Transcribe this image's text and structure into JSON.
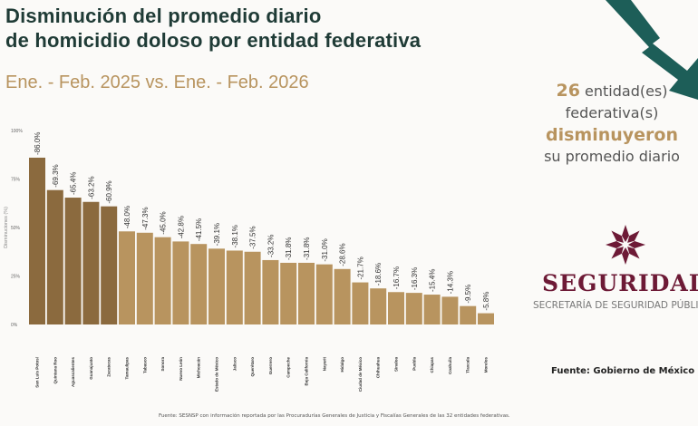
{
  "header": {
    "title_line1": "Disminución del promedio diario",
    "title_line2": "de homicidio doloso por entidad federativa",
    "subtitle": "Ene. - Feb. 2025 vs. Ene. - Feb. 2026"
  },
  "side": {
    "count": "26",
    "line1_rest": " entidad(es)",
    "line2": "federativa(s)",
    "line3": "disminuyeron",
    "line4": "su promedio diario"
  },
  "logo": {
    "word": "SEGURIDAD",
    "subtitle": "SECRETARÍA DE SEGURIDAD PÚBLICA"
  },
  "source": "Fuente: Gobierno de México",
  "footnote": "Fuente: SESNSP con información reportada por las Procuradurías Generales de Justicia y Fiscalías Generales de las 32 entidades federativas.",
  "colors": {
    "dark_bar": "#8b6a3e",
    "light_bar": "#b8945f",
    "title": "#1f3b36",
    "accent": "#b8945f",
    "logo": "#6d1a36",
    "arrow": "#1d5e58"
  },
  "chart_data": {
    "type": "bar",
    "ylabel": "Disminuciones (%)",
    "ylim": [
      0,
      100
    ],
    "yticks": [
      "0%",
      "25%",
      "50%",
      "75%",
      "100%"
    ],
    "grid": false,
    "categories": [
      "San Luis Potosí",
      "Quintana Roo",
      "Aguascalientes",
      "Guanajuato",
      "Zacatecas",
      "Tamaulipas",
      "Tabasco",
      "Sonora",
      "Nuevo León",
      "Michoacán",
      "Estado de México",
      "Jalisco",
      "Querétaro",
      "Guerrero",
      "Campeche",
      "Baja California",
      "Nayarit",
      "Hidalgo",
      "Ciudad de México",
      "Chihuahua",
      "Sinaloa",
      "Puebla",
      "Chiapas",
      "Coahuila",
      "Tlaxcala",
      "Morelos"
    ],
    "values": [
      86.0,
      69.3,
      65.4,
      63.2,
      60.9,
      48.0,
      47.3,
      45.0,
      42.8,
      41.5,
      39.1,
      38.1,
      37.5,
      33.2,
      31.8,
      31.8,
      31.0,
      28.6,
      21.7,
      18.6,
      16.7,
      16.3,
      15.4,
      14.3,
      9.5,
      5.8
    ],
    "labels": [
      "-86.0%",
      "-69.3%",
      "-65.4%",
      "-63.2%",
      "-60.9%",
      "-48.0%",
      "-47.3%",
      "-45.0%",
      "-42.8%",
      "-41.5%",
      "-39.1%",
      "-38.1%",
      "-37.5%",
      "-33.2%",
      "-31.8%",
      "-31.8%",
      "-31.0%",
      "-28.6%",
      "-21.7%",
      "-18.6%",
      "-16.7%",
      "-16.3%",
      "-15.4%",
      "-14.3%",
      "-9.5%",
      "-5.8%"
    ],
    "highlighted_top": 5
  }
}
